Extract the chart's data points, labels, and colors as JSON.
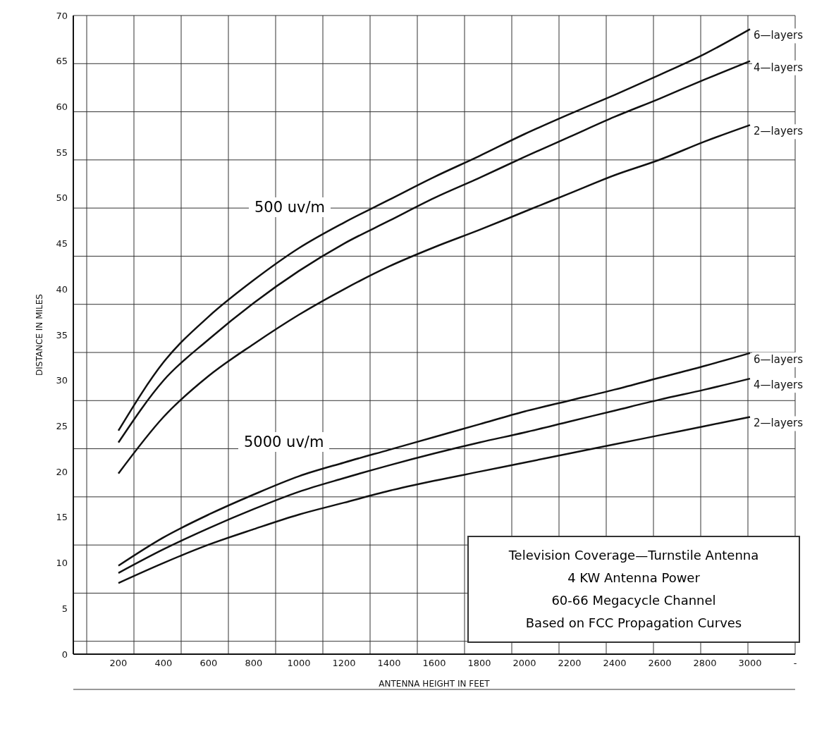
{
  "chart_data": {
    "type": "line",
    "xlabel": "ANTENNA HEIGHT IN FEET",
    "ylabel": "DISTANCE IN MILES",
    "x": [
      200,
      400,
      600,
      800,
      1000,
      1200,
      1400,
      1600,
      1800,
      2000,
      2200,
      2400,
      2600,
      2800,
      3000
    ],
    "series": [
      {
        "name": "6—layers",
        "color": "#111111",
        "values": [
          24.5,
          32,
          37,
          41,
          44.5,
          47.3,
          49.8,
          52.3,
          54.6,
          57,
          59.2,
          61.3,
          63.5,
          65.8,
          68.5
        ]
      },
      {
        "name": "4—layers",
        "color": "#111111",
        "values": [
          23.2,
          30,
          34.5,
          38.5,
          42,
          45,
          47.5,
          50,
          52.2,
          54.5,
          56.7,
          58.9,
          60.9,
          63,
          65
        ]
      },
      {
        "name": "2—layers",
        "color": "#111111",
        "values": [
          19.8,
          26,
          30.5,
          34,
          37.2,
          40,
          42.5,
          44.6,
          46.5,
          48.5,
          50.5,
          52.5,
          54.2,
          56.2,
          58
        ]
      },
      {
        "name": "6—layers",
        "color": "#111111",
        "values": [
          9.7,
          12.8,
          15.3,
          17.5,
          19.5,
          21,
          22.4,
          23.8,
          25.2,
          26.6,
          27.8,
          29,
          30.3,
          31.6,
          33
        ]
      },
      {
        "name": "4—layers",
        "color": "#111111",
        "values": [
          8.9,
          11.5,
          13.8,
          15.9,
          17.8,
          19.3,
          20.7,
          22,
          23.2,
          24.3,
          25.5,
          26.7,
          27.9,
          29,
          30.2
        ]
      },
      {
        "name": "2—layers",
        "color": "#111111",
        "values": [
          7.8,
          10,
          12,
          13.7,
          15.3,
          16.6,
          17.9,
          19,
          20,
          21,
          22,
          23,
          24,
          25,
          26
        ]
      }
    ],
    "annotations": [
      "500 uv/m",
      "5000 uv/m",
      "Television Coverage—Turnstile Antenna",
      "4 KW Antenna Power",
      "60-66 Megacycle Channel",
      "Based on FCC Propagation Curves"
    ],
    "xlim": [
      0,
      3200
    ],
    "xticks": [
      200,
      400,
      600,
      800,
      1000,
      1200,
      1400,
      1600,
      1800,
      2000,
      2200,
      2400,
      2600,
      2800,
      3000,
      {
        "value": 3200,
        "label": "-"
      }
    ],
    "ylim": [
      0,
      70
    ],
    "yticks": [
      0,
      5,
      10,
      15,
      20,
      25,
      30,
      35,
      40,
      45,
      50,
      55,
      60,
      65,
      70
    ],
    "grid": true
  }
}
